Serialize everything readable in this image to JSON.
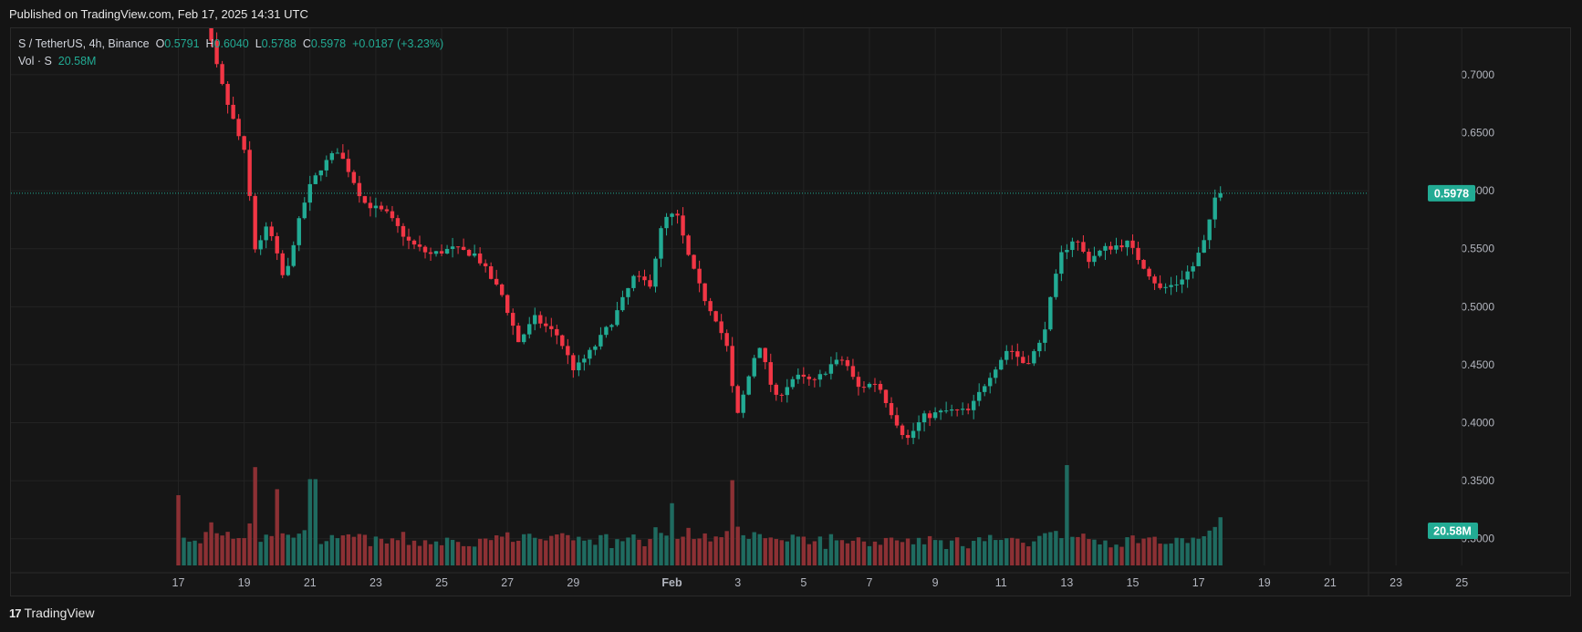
{
  "header": {
    "published": "Published on TradingView.com, Feb 17, 2025 14:31 UTC"
  },
  "legend": {
    "symbol": "S / TetherUS, 4h, Binance",
    "o_label": "O",
    "o_value": "0.5791",
    "h_label": "H",
    "h_value": "0.6040",
    "l_label": "L",
    "l_value": "0.5788",
    "c_label": "C",
    "c_value": "0.5978",
    "change": "+0.0187 (+3.23%)",
    "vol_label": "Vol · S",
    "vol_value": "20.58M"
  },
  "footer": {
    "brand": "TradingView",
    "logo_text": "17"
  },
  "colors": {
    "up": "#22ab94",
    "down": "#f23645",
    "up_vol": "#1f6b60",
    "down_vol": "#8c3034",
    "grid": "#232323",
    "axis_text": "#b2b5be",
    "price_tag": "#22ab94"
  },
  "chart_data": {
    "type": "candlestick",
    "interval": "4h",
    "y_axis": {
      "min": 0.277,
      "max": 0.74,
      "ticks": [
        "0.7000",
        "0.6500",
        "0.6000",
        "0.5500",
        "0.5000",
        "0.4500",
        "0.4000",
        "0.3500",
        "0.3000"
      ],
      "tick_values": [
        0.7,
        0.65,
        0.6,
        0.55,
        0.5,
        0.45,
        0.4,
        0.35,
        0.3
      ],
      "position": "right"
    },
    "x_axis": {
      "labels": [
        "17",
        "19",
        "21",
        "23",
        "25",
        "27",
        "29",
        "Feb",
        "3",
        "5",
        "7",
        "9",
        "11",
        "13",
        "15",
        "17",
        "19",
        "21",
        "23",
        "25"
      ],
      "label_day_index": [
        0,
        2,
        4,
        6,
        8,
        10,
        12,
        15,
        17,
        19,
        21,
        23,
        25,
        27,
        29,
        31,
        33,
        35,
        37,
        39
      ]
    },
    "start_label": "Jan 17",
    "current_price": "0.5978",
    "current_price_value": 0.5978,
    "current_volume": "20.58M",
    "anchors": [
      {
        "day": 0.9,
        "price": 0.78
      },
      {
        "day": 1.2,
        "price": 0.72
      },
      {
        "day": 1.6,
        "price": 0.68
      },
      {
        "day": 2.2,
        "price": 0.63
      },
      {
        "day": 2.5,
        "price": 0.55
      },
      {
        "day": 2.9,
        "price": 0.57
      },
      {
        "day": 3.4,
        "price": 0.52
      },
      {
        "day": 3.7,
        "price": 0.56
      },
      {
        "day": 4.1,
        "price": 0.6
      },
      {
        "day": 4.5,
        "price": 0.62
      },
      {
        "day": 5.0,
        "price": 0.635
      },
      {
        "day": 5.3,
        "price": 0.62
      },
      {
        "day": 5.8,
        "price": 0.59
      },
      {
        "day": 6.5,
        "price": 0.58
      },
      {
        "day": 7.2,
        "price": 0.555
      },
      {
        "day": 7.8,
        "price": 0.545
      },
      {
        "day": 8.5,
        "price": 0.55
      },
      {
        "day": 9.2,
        "price": 0.545
      },
      {
        "day": 10.0,
        "price": 0.51
      },
      {
        "day": 10.5,
        "price": 0.47
      },
      {
        "day": 11.0,
        "price": 0.49
      },
      {
        "day": 11.7,
        "price": 0.475
      },
      {
        "day": 12.2,
        "price": 0.445
      },
      {
        "day": 12.8,
        "price": 0.465
      },
      {
        "day": 13.4,
        "price": 0.49
      },
      {
        "day": 14.0,
        "price": 0.525
      },
      {
        "day": 14.5,
        "price": 0.52
      },
      {
        "day": 14.9,
        "price": 0.575
      },
      {
        "day": 15.3,
        "price": 0.58
      },
      {
        "day": 15.7,
        "price": 0.54
      },
      {
        "day": 16.1,
        "price": 0.51
      },
      {
        "day": 16.5,
        "price": 0.49
      },
      {
        "day": 16.9,
        "price": 0.46
      },
      {
        "day": 17.1,
        "price": 0.4
      },
      {
        "day": 17.4,
        "price": 0.43
      },
      {
        "day": 17.8,
        "price": 0.47
      },
      {
        "day": 18.3,
        "price": 0.42
      },
      {
        "day": 18.9,
        "price": 0.44
      },
      {
        "day": 19.5,
        "price": 0.435
      },
      {
        "day": 20.0,
        "price": 0.45
      },
      {
        "day": 20.4,
        "price": 0.455
      },
      {
        "day": 20.8,
        "price": 0.43
      },
      {
        "day": 21.4,
        "price": 0.435
      },
      {
        "day": 21.9,
        "price": 0.405
      },
      {
        "day": 22.3,
        "price": 0.385
      },
      {
        "day": 22.8,
        "price": 0.405
      },
      {
        "day": 23.5,
        "price": 0.41
      },
      {
        "day": 24.2,
        "price": 0.41
      },
      {
        "day": 24.8,
        "price": 0.44
      },
      {
        "day": 25.4,
        "price": 0.465
      },
      {
        "day": 25.9,
        "price": 0.45
      },
      {
        "day": 26.4,
        "price": 0.47
      },
      {
        "day": 26.7,
        "price": 0.51
      },
      {
        "day": 27.0,
        "price": 0.545
      },
      {
        "day": 27.4,
        "price": 0.56
      },
      {
        "day": 27.8,
        "price": 0.54
      },
      {
        "day": 28.3,
        "price": 0.55
      },
      {
        "day": 29.0,
        "price": 0.555
      },
      {
        "day": 29.5,
        "price": 0.535
      },
      {
        "day": 30.0,
        "price": 0.515
      },
      {
        "day": 30.5,
        "price": 0.52
      },
      {
        "day": 31.0,
        "price": 0.535
      },
      {
        "day": 31.4,
        "price": 0.56
      },
      {
        "day": 31.7,
        "price": 0.598
      }
    ],
    "volume_spikes": [
      {
        "day": 0.0,
        "vol": 0.7
      },
      {
        "day": 2.3,
        "vol": 0.98
      },
      {
        "day": 3.0,
        "vol": 0.76
      },
      {
        "day": 4.1,
        "vol": 0.86
      },
      {
        "day": 15.0,
        "vol": 0.62
      },
      {
        "day": 16.9,
        "vol": 0.85
      },
      {
        "day": 27.0,
        "vol": 1.0
      },
      {
        "day": 31.6,
        "vol": 0.48
      }
    ]
  }
}
